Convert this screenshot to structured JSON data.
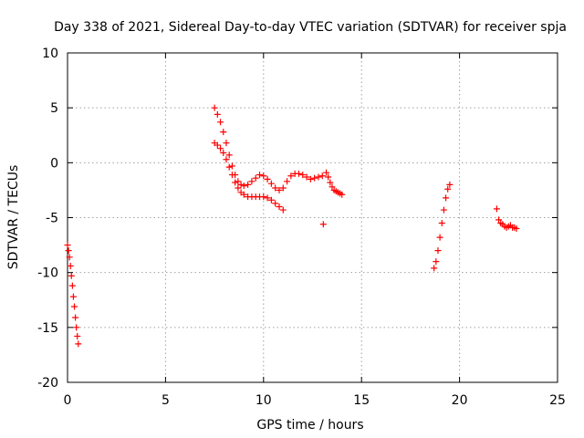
{
  "chart_data": {
    "type": "scatter",
    "title": "Day 338 of 2021, Sidereal Day-to-day VTEC variation (SDTVAR) for receiver spja",
    "xlabel": "GPS time / hours",
    "ylabel": "SDTVAR / TECUs",
    "xlim": [
      0,
      25
    ],
    "ylim": [
      -20,
      10
    ],
    "xticks": [
      0,
      5,
      10,
      15,
      20,
      25
    ],
    "yticks": [
      -20,
      -15,
      -10,
      -5,
      0,
      5,
      10
    ],
    "xtick_labels": [
      "0",
      "5",
      "10",
      "15",
      "20",
      "25"
    ],
    "ytick_labels": [
      "-20",
      "-15",
      "-10",
      "-5",
      "0",
      "5",
      "10"
    ],
    "grid": true,
    "marker": "+",
    "color": "#ff0000",
    "series": [
      {
        "name": "segment-1",
        "x": [
          0.0,
          0.05,
          0.1,
          0.15,
          0.2,
          0.25,
          0.3,
          0.35,
          0.4,
          0.45,
          0.5,
          0.55
        ],
        "y": [
          -7.5,
          -8.0,
          -8.6,
          -9.4,
          -10.3,
          -11.2,
          -12.2,
          -13.1,
          -14.1,
          -15.0,
          -15.8,
          -16.5
        ]
      },
      {
        "name": "segment-2-upper",
        "x": [
          7.5,
          7.65,
          7.8,
          7.95,
          8.1,
          8.25,
          8.4,
          8.55,
          8.7,
          8.85,
          9.0,
          9.2,
          9.4,
          9.6,
          9.8,
          10.0,
          10.2,
          10.4,
          10.6,
          10.8,
          11.0,
          11.2,
          11.4,
          11.6,
          11.8,
          12.0,
          12.2,
          12.4,
          12.6,
          12.8,
          13.0
        ],
        "y": [
          5.0,
          4.4,
          3.7,
          2.8,
          1.8,
          0.7,
          -0.3,
          -1.1,
          -1.7,
          -2.0,
          -2.1,
          -2.0,
          -1.7,
          -1.4,
          -1.1,
          -1.2,
          -1.5,
          -1.9,
          -2.3,
          -2.5,
          -2.3,
          -1.7,
          -1.2,
          -1.0,
          -1.0,
          -1.1,
          -1.3,
          -1.5,
          -1.4,
          -1.3,
          -1.2
        ]
      },
      {
        "name": "segment-2-lower",
        "x": [
          7.5,
          7.65,
          7.8,
          7.95,
          8.1,
          8.25,
          8.4,
          8.55,
          8.7,
          8.85,
          9.0,
          9.2,
          9.4,
          9.6,
          9.8,
          10.0,
          10.2,
          10.4,
          10.6,
          10.8,
          11.0
        ],
        "y": [
          1.8,
          1.6,
          1.3,
          0.9,
          0.3,
          -0.4,
          -1.1,
          -1.8,
          -2.3,
          -2.7,
          -2.9,
          -3.1,
          -3.1,
          -3.1,
          -3.1,
          -3.1,
          -3.2,
          -3.4,
          -3.7,
          -4.0,
          -4.3
        ]
      },
      {
        "name": "segment-2-tail",
        "x": [
          13.2,
          13.3,
          13.4,
          13.5,
          13.6,
          13.7,
          13.8,
          13.9,
          14.0
        ],
        "y": [
          -0.9,
          -1.3,
          -1.8,
          -2.2,
          -2.5,
          -2.6,
          -2.7,
          -2.8,
          -2.9
        ]
      },
      {
        "name": "outlier",
        "x": [
          13.05
        ],
        "y": [
          -5.6
        ]
      },
      {
        "name": "segment-3",
        "x": [
          18.7,
          18.8,
          18.9,
          19.0,
          19.1,
          19.2,
          19.3,
          19.4,
          19.5
        ],
        "y": [
          -9.6,
          -9.0,
          -8.0,
          -6.8,
          -5.5,
          -4.3,
          -3.2,
          -2.4,
          -2.0
        ]
      },
      {
        "name": "segment-4",
        "x": [
          21.9,
          22.0,
          22.1,
          22.2,
          22.3,
          22.4,
          22.5,
          22.6,
          22.7,
          22.8,
          22.9
        ],
        "y": [
          -4.2,
          -5.2,
          -5.5,
          -5.6,
          -5.8,
          -5.9,
          -5.8,
          -5.7,
          -5.9,
          -5.9,
          -6.0
        ]
      }
    ]
  }
}
